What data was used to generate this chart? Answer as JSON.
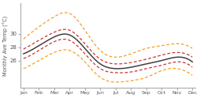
{
  "months": [
    "Jan",
    "Feb",
    "Mar",
    "Apr",
    "May",
    "Jun",
    "Jul",
    "Aug",
    "Sep",
    "Oct",
    "Nov",
    "Dec"
  ],
  "median": [
    27.0,
    28.2,
    29.5,
    29.8,
    27.8,
    25.5,
    24.8,
    25.0,
    25.5,
    26.0,
    26.5,
    25.8
  ],
  "p25": [
    26.3,
    27.5,
    28.8,
    29.0,
    27.0,
    24.8,
    24.2,
    24.3,
    24.8,
    25.3,
    25.8,
    25.0
  ],
  "p75": [
    27.7,
    29.0,
    30.2,
    30.5,
    28.5,
    26.2,
    25.5,
    25.7,
    26.2,
    26.8,
    27.2,
    26.5
  ],
  "min_val": [
    24.8,
    26.0,
    27.2,
    27.5,
    25.8,
    23.5,
    22.8,
    23.0,
    23.5,
    24.5,
    24.8,
    23.8
  ],
  "max_val": [
    29.2,
    31.0,
    32.5,
    33.0,
    30.5,
    27.5,
    26.5,
    27.0,
    27.8,
    28.2,
    28.5,
    27.8
  ],
  "color_median": "#404040",
  "color_iqr": "#cc3333",
  "color_minmax": "#f5a020",
  "ylabel": "Monthly Ave Temp (°C)",
  "ylim": [
    22.0,
    34.5
  ],
  "yticks": [
    26,
    28,
    30
  ],
  "bg_color": "#ffffff"
}
